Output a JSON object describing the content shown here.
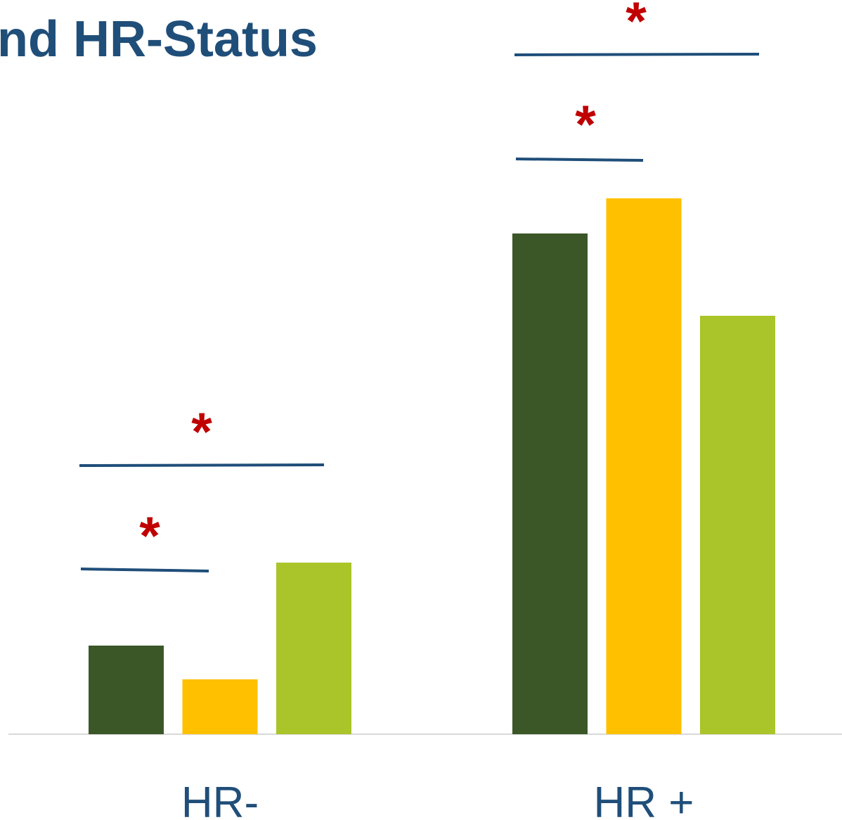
{
  "chart_data": {
    "type": "bar",
    "title": "nd HR-Status",
    "categories": [
      "HR-",
      "HR +"
    ],
    "series": [
      {
        "color": "#3b5727",
        "values": [
          126,
          712
        ]
      },
      {
        "color": "#ffc000",
        "values": [
          78,
          762
        ]
      },
      {
        "color": "#a9c52a",
        "values": [
          244,
          595
        ]
      }
    ],
    "annotations": [
      "*",
      "*",
      "*",
      "*"
    ]
  }
}
